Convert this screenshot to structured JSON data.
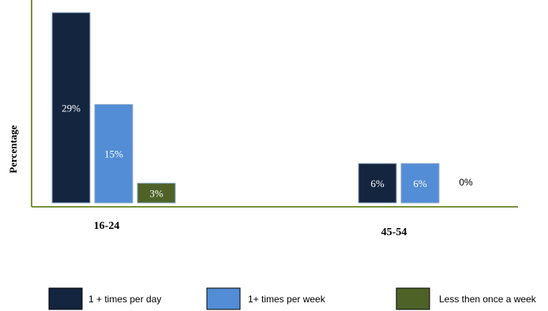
{
  "chart_data": {
    "type": "bar",
    "ylabel": "Percentage",
    "categories": [
      "16-24",
      "45-54"
    ],
    "series": [
      {
        "name": "1 + times per day",
        "values": [
          29,
          6
        ],
        "labels": [
          "29%",
          "6%"
        ],
        "color": "#13253f"
      },
      {
        "name": "1+ times per week",
        "values": [
          15,
          6
        ],
        "labels": [
          "15%",
          "6%"
        ],
        "color": "#538dd5"
      },
      {
        "name": "Less then once a week",
        "values": [
          3,
          0
        ],
        "labels": [
          "3%",
          "0%"
        ],
        "color": "#4e6228"
      }
    ],
    "ylim": [
      0,
      29
    ],
    "grid": false,
    "legend_position": "bottom",
    "axis_color": "#77933c"
  }
}
